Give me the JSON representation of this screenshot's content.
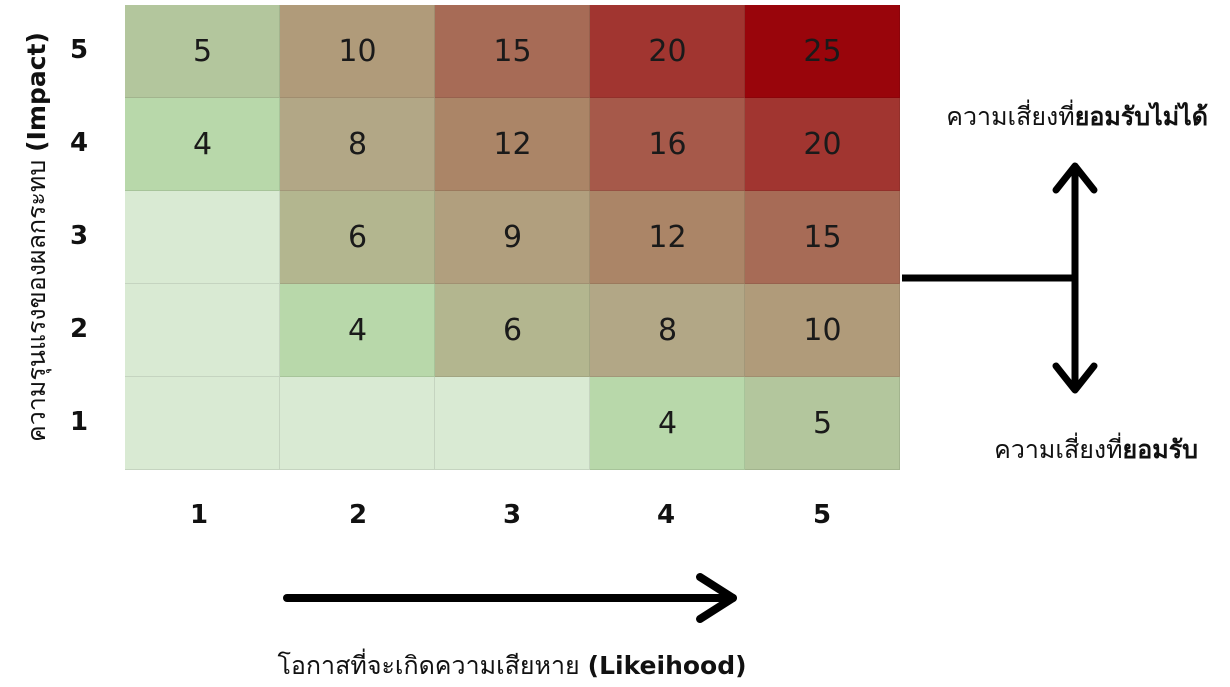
{
  "chart_data": {
    "type": "heatmap",
    "rows": [
      "5",
      "4",
      "3",
      "2",
      "1"
    ],
    "columns": [
      "1",
      "2",
      "3",
      "4",
      "5"
    ],
    "cells": [
      [
        {
          "value": "5",
          "color": "#b3c69d"
        },
        {
          "value": "10",
          "color": "#b09b7a"
        },
        {
          "value": "15",
          "color": "#a76b56"
        },
        {
          "value": "20",
          "color": "#a13530"
        },
        {
          "value": "25",
          "color": "#99050b"
        }
      ],
      [
        {
          "value": "4",
          "color": "#b8d8aa"
        },
        {
          "value": "8",
          "color": "#b2a786"
        },
        {
          "value": "12",
          "color": "#ab8567"
        },
        {
          "value": "16",
          "color": "#a6594a"
        },
        {
          "value": "20",
          "color": "#a13530"
        }
      ],
      [
        {
          "value": "",
          "color": "#d9ead3"
        },
        {
          "value": "6",
          "color": "#b3b68f"
        },
        {
          "value": "9",
          "color": "#b19f7e"
        },
        {
          "value": "12",
          "color": "#ab8567"
        },
        {
          "value": "15",
          "color": "#a76b56"
        }
      ],
      [
        {
          "value": "",
          "color": "#d9ead3"
        },
        {
          "value": "4",
          "color": "#b8d8aa"
        },
        {
          "value": "6",
          "color": "#b3b68f"
        },
        {
          "value": "8",
          "color": "#b2a786"
        },
        {
          "value": "10",
          "color": "#b09b7a"
        }
      ],
      [
        {
          "value": "",
          "color": "#d9ead3"
        },
        {
          "value": "",
          "color": "#d9ead3"
        },
        {
          "value": "",
          "color": "#d9ead3"
        },
        {
          "value": "4",
          "color": "#b8d8aa"
        },
        {
          "value": "5",
          "color": "#b3c69d"
        }
      ]
    ],
    "ylabel": "ความรุนแรงของผลกระทบ",
    "ylabel_en": "(Impact)",
    "xlabel": "โอกาสที่จะเกิดความเสียหาย",
    "xlabel_en": "(Likeihood)"
  },
  "legend": {
    "unacceptable": {
      "prefix": "ความเสี่ยงที่",
      "bold": "ยอมรับไม่ได้"
    },
    "acceptable": {
      "prefix": "ความเสี่ยงที่",
      "bold": "ยอมรับ"
    }
  }
}
